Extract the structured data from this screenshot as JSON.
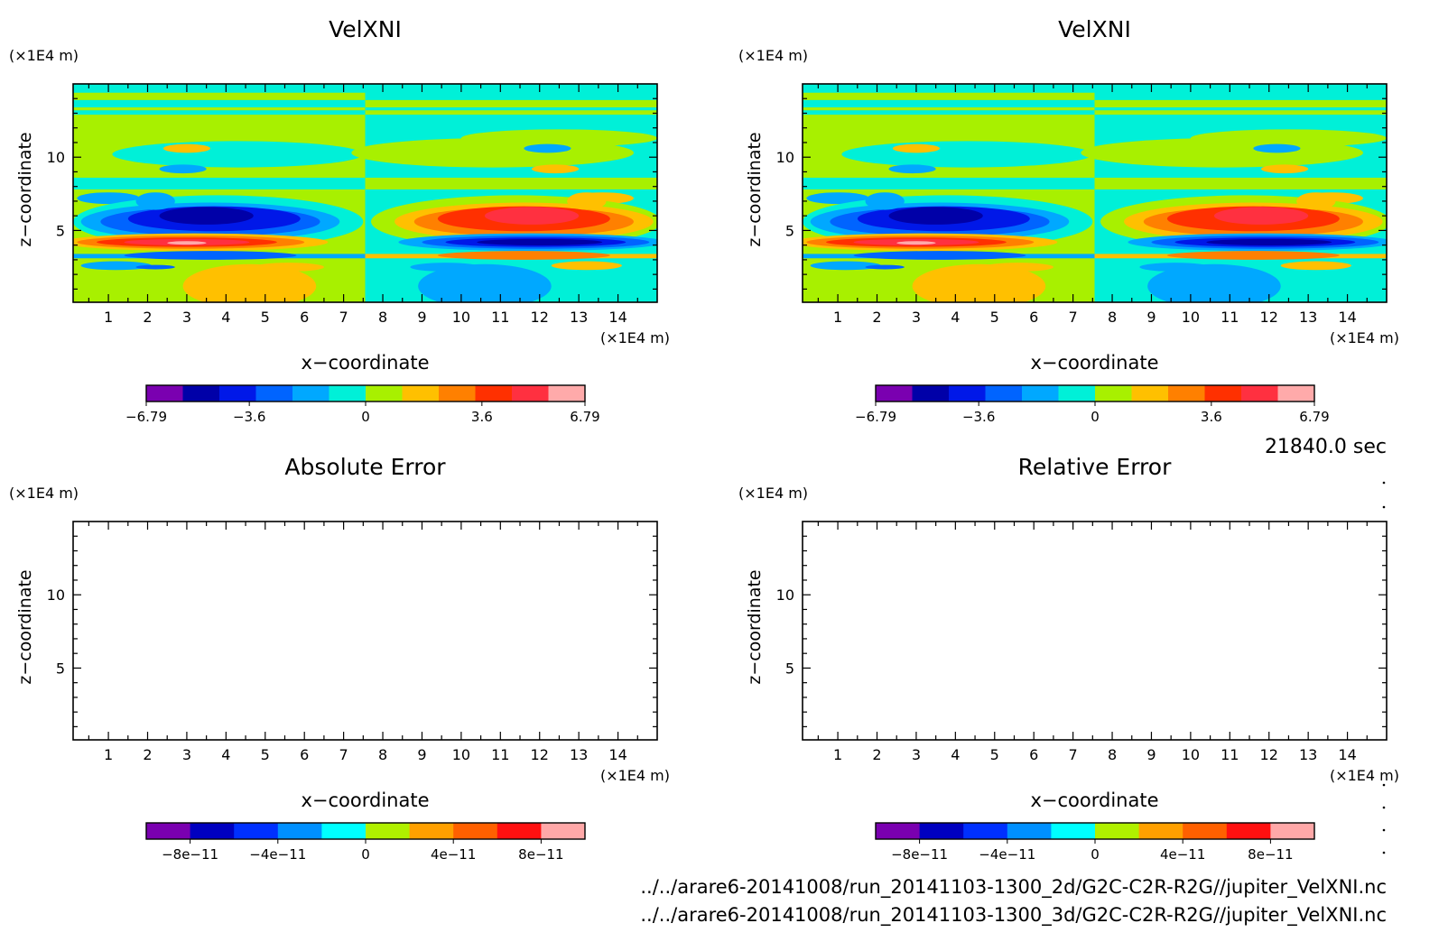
{
  "time_label": "21840.0 sec",
  "files": [
    "../../arare6-20141008/run_20141103-1300_2d/G2C-C2R-R2G//jupiter_VelXNI.nc",
    "../../arare6-20141008/run_20141103-1300_3d/G2C-C2R-R2G//jupiter_VelXNI.nc"
  ],
  "panels": [
    {
      "title": "VelXNI",
      "ylabel": "z−coordinate",
      "yunit": "(×1E4 m)",
      "xlabel": "x−coordinate",
      "xunit": "(×1E4 m)",
      "colorbar_labels": [
        "−6.79",
        "−3.6",
        "0",
        "3.6",
        "6.79"
      ]
    },
    {
      "title": "VelXNI",
      "ylabel": "z−coordinate",
      "yunit": "(×1E4 m)",
      "xlabel": "x−coordinate",
      "xunit": "(×1E4 m)",
      "colorbar_labels": [
        "−6.79",
        "−3.6",
        "0",
        "3.6",
        "6.79"
      ]
    },
    {
      "title": "Absolute Error",
      "ylabel": "z−coordinate",
      "yunit": "(×1E4 m)",
      "xlabel": "x−coordinate",
      "xunit": "(×1E4 m)",
      "colorbar_labels": [
        "−8e−11",
        "−4e−11",
        "0",
        "4e−11",
        "8e−11"
      ]
    },
    {
      "title": "Relative Error",
      "ylabel": "z−coordinate",
      "yunit": "(×1E4 m)",
      "xlabel": "x−coordinate",
      "xunit": "(×1E4 m)",
      "colorbar_labels": [
        "−8e−11",
        "−4e−11",
        "0",
        "4e−11",
        "8e−11"
      ]
    }
  ],
  "chart_data": [
    {
      "type": "heatmap",
      "title": "VelXNI",
      "xlabel": "x−coordinate (×1E4 m)",
      "ylabel": "z−coordinate (×1E4 m)",
      "xlim": [
        0.1,
        15.0
      ],
      "ylim": [
        0.1,
        15.0
      ],
      "x_ticks": [
        1,
        2,
        3,
        4,
        5,
        6,
        7,
        8,
        9,
        10,
        11,
        12,
        13,
        14
      ],
      "y_ticks": [
        5,
        10
      ],
      "colorbar_range": [
        -6.79,
        6.79
      ],
      "colorbar_ticks": [
        -6.79,
        -3.6,
        0,
        3.6,
        6.79
      ],
      "colorbar_colors": [
        "#7a00b0",
        "#0000a8",
        "#0018e8",
        "#0064ff",
        "#00a8ff",
        "#00f0d8",
        "#a8f000",
        "#ffc000",
        "#ff8000",
        "#ff3000",
        "#ff3040",
        "#ffaaaa"
      ],
      "features": [
        {
          "kind": "background",
          "x_range": [
            0.1,
            7.55
          ],
          "value": 0.3
        },
        {
          "kind": "background",
          "x_range": [
            7.55,
            15.0
          ],
          "value": -0.3
        },
        {
          "kind": "negative_jet",
          "x_center": 3.5,
          "z_center": 5.6,
          "min_value": -6.5
        },
        {
          "kind": "positive_jet",
          "x_center": 3.0,
          "z_center": 4.2,
          "max_value": 6.79
        },
        {
          "kind": "positive_jet",
          "x_center": 11.5,
          "z_center": 5.6,
          "max_value": 5.5
        },
        {
          "kind": "negative_jet",
          "x_center": 11.5,
          "z_center": 4.2,
          "min_value": -6.5
        }
      ]
    },
    {
      "type": "heatmap",
      "title": "VelXNI",
      "xlabel": "x−coordinate (×1E4 m)",
      "ylabel": "z−coordinate (×1E4 m)",
      "xlim": [
        0.1,
        15.0
      ],
      "ylim": [
        0.1,
        15.0
      ],
      "x_ticks": [
        1,
        2,
        3,
        4,
        5,
        6,
        7,
        8,
        9,
        10,
        11,
        12,
        13,
        14
      ],
      "y_ticks": [
        5,
        10
      ],
      "colorbar_range": [
        -6.79,
        6.79
      ],
      "colorbar_ticks": [
        -6.79,
        -3.6,
        0,
        3.6,
        6.79
      ],
      "same_as_panel": 0
    },
    {
      "type": "heatmap",
      "title": "Absolute Error",
      "xlabel": "x−coordinate (×1E4 m)",
      "ylabel": "z−coordinate (×1E4 m)",
      "xlim": [
        0.1,
        15.0
      ],
      "ylim": [
        0.1,
        15.0
      ],
      "x_ticks": [
        1,
        2,
        3,
        4,
        5,
        6,
        7,
        8,
        9,
        10,
        11,
        12,
        13,
        14
      ],
      "y_ticks": [
        5,
        10
      ],
      "colorbar_range": [
        -1e-10,
        1e-10
      ],
      "colorbar_ticks": [
        -8e-11,
        -4e-11,
        0,
        4e-11,
        8e-11
      ],
      "colorbar_colors": [
        "#7a00b0",
        "#0000c0",
        "#0030ff",
        "#0090ff",
        "#00ffff",
        "#b0f000",
        "#ffa000",
        "#ff6000",
        "#ff1010",
        "#ffa8a8"
      ],
      "field": "empty"
    },
    {
      "type": "heatmap",
      "title": "Relative Error",
      "xlabel": "x−coordinate (×1E4 m)",
      "ylabel": "z−coordinate (×1E4 m)",
      "xlim": [
        0.1,
        15.0
      ],
      "ylim": [
        0.1,
        15.0
      ],
      "x_ticks": [
        1,
        2,
        3,
        4,
        5,
        6,
        7,
        8,
        9,
        10,
        11,
        12,
        13,
        14
      ],
      "y_ticks": [
        5,
        10
      ],
      "colorbar_range": [
        -1e-10,
        1e-10
      ],
      "colorbar_ticks": [
        -8e-11,
        -4e-11,
        0,
        4e-11,
        8e-11
      ],
      "colorbar_colors": [
        "#7a00b0",
        "#0000c0",
        "#0030ff",
        "#0090ff",
        "#00ffff",
        "#b0f000",
        "#ffa000",
        "#ff6000",
        "#ff1010",
        "#ffa8a8"
      ],
      "field": "empty"
    }
  ]
}
